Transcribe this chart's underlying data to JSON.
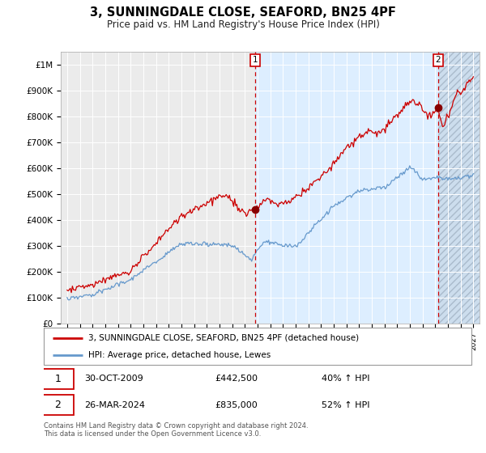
{
  "title": "3, SUNNINGDALE CLOSE, SEAFORD, BN25 4PF",
  "subtitle": "Price paid vs. HM Land Registry's House Price Index (HPI)",
  "legend_line1": "3, SUNNINGDALE CLOSE, SEAFORD, BN25 4PF (detached house)",
  "legend_line2": "HPI: Average price, detached house, Lewes",
  "annotation1": {
    "label": "1",
    "date": "30-OCT-2009",
    "price": "£442,500",
    "hpi": "40% ↑ HPI"
  },
  "annotation2": {
    "label": "2",
    "date": "26-MAR-2024",
    "price": "£835,000",
    "hpi": "52% ↑ HPI"
  },
  "footer": "Contains HM Land Registry data © Crown copyright and database right 2024.\nThis data is licensed under the Open Government Licence v3.0.",
  "y_ticks": [
    0,
    100000,
    200000,
    300000,
    400000,
    500000,
    600000,
    700000,
    800000,
    900000,
    1000000
  ],
  "y_tick_labels": [
    "£0",
    "£100K",
    "£200K",
    "£300K",
    "£400K",
    "£500K",
    "£600K",
    "£700K",
    "£800K",
    "£900K",
    "£1M"
  ],
  "red_color": "#cc0000",
  "blue_color": "#6699cc",
  "shaded_color": "#ddeeff",
  "grid_color": "#ffffff",
  "vline_color": "#cc0000",
  "marker_color": "#880000",
  "sale1_x": 2009.83,
  "sale1_y": 442500,
  "sale2_x": 2024.23,
  "sale2_y": 835000,
  "x_min": 1994.5,
  "x_max": 2027.5,
  "y_min": 0,
  "y_max": 1000000
}
